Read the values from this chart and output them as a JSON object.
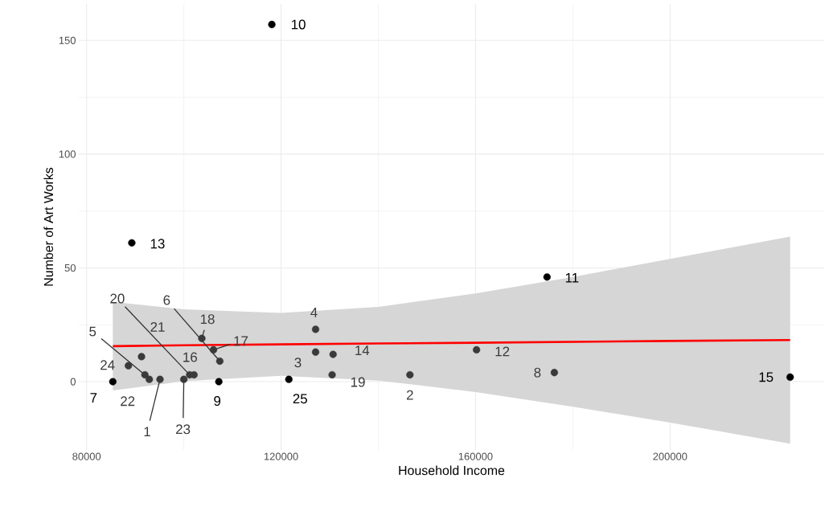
{
  "chart_data": {
    "type": "scatter",
    "xlabel": "Household Income",
    "ylabel": "Number of Art Works",
    "xlim": [
      78400,
      231700
    ],
    "ylim": [
      -30,
      166
    ],
    "xticks": [
      80000,
      120000,
      160000,
      200000
    ],
    "yticks": [
      0,
      50,
      100,
      150
    ],
    "grid": true,
    "series": [
      {
        "marker": "circle",
        "x": [
          95100,
          146500,
          127100,
          127100,
          92000,
          107400,
          85400,
          176200,
          107200,
          118100,
          174700,
          160200,
          89300,
          130700,
          224700,
          102100,
          106100,
          103700,
          130500,
          101200,
          91300,
          92900,
          100000,
          88600,
          121600
        ],
        "values": [
          1,
          3,
          13,
          23,
          3,
          9,
          0,
          4,
          0,
          157,
          46,
          14,
          61,
          12,
          2,
          3,
          14,
          19,
          3,
          3,
          11,
          1,
          1,
          7,
          1
        ],
        "colors": [
          "#3a3a3a",
          "#3a3a3a",
          "#3a3a3a",
          "#3a3a3a",
          "#3a3a3a",
          "#3a3a3a",
          "#000000",
          "#3a3a3a",
          "#000000",
          "#000000",
          "#000000",
          "#3a3a3a",
          "#000000",
          "#3a3a3a",
          "#000000",
          "#3a3a3a",
          "#3a3a3a",
          "#3a3a3a",
          "#3a3a3a",
          "#3a3a3a",
          "#3a3a3a",
          "#3a3a3a",
          "#3a3a3a",
          "#3a3a3a",
          "#000000"
        ]
      },
      {
        "type": "line",
        "marker": "none",
        "color": "#ff0000",
        "x": [
          85400,
          100000,
          120000,
          140000,
          160000,
          180000,
          200000,
          224700
        ],
        "values": [
          15.6,
          16.0,
          16.4,
          16.8,
          17.1,
          17.5,
          17.9,
          18.3
        ],
        "lower": [
          -3.9,
          0.2,
          2.6,
          0.5,
          -4.6,
          -11,
          -18,
          -27.3
        ],
        "upper": [
          35.1,
          31.8,
          30.2,
          32.9,
          38.8,
          46,
          54,
          63.8
        ]
      }
    ],
    "annotations": [
      {
        "text": "1",
        "x": 95100,
        "y": 1
      },
      {
        "text": "2",
        "x": 146500,
        "y": 3
      },
      {
        "text": "3",
        "x": 127100,
        "y": 13
      },
      {
        "text": "4",
        "x": 127100,
        "y": 23
      },
      {
        "text": "5",
        "x": 92000,
        "y": 3
      },
      {
        "text": "6",
        "x": 107400,
        "y": 9
      },
      {
        "text": "7",
        "x": 85400,
        "y": 0
      },
      {
        "text": "8",
        "x": 176200,
        "y": 4
      },
      {
        "text": "9",
        "x": 107200,
        "y": 0
      },
      {
        "text": "10",
        "x": 118100,
        "y": 157
      },
      {
        "text": "11",
        "x": 174700,
        "y": 46
      },
      {
        "text": "12",
        "x": 160200,
        "y": 14
      },
      {
        "text": "13",
        "x": 89300,
        "y": 61
      },
      {
        "text": "14",
        "x": 130700,
        "y": 12
      },
      {
        "text": "15",
        "x": 224700,
        "y": 2
      },
      {
        "text": "16",
        "x": 102100,
        "y": 3
      },
      {
        "text": "17",
        "x": 106100,
        "y": 14
      },
      {
        "text": "18",
        "x": 103700,
        "y": 19
      },
      {
        "text": "19",
        "x": 130500,
        "y": 3
      },
      {
        "text": "20",
        "x": 101200,
        "y": 3
      },
      {
        "text": "21",
        "x": 91300,
        "y": 11
      },
      {
        "text": "22",
        "x": 92900,
        "y": 1
      },
      {
        "text": "23",
        "x": 100000,
        "y": 1
      },
      {
        "text": "24",
        "x": 88600,
        "y": 7
      },
      {
        "text": "25",
        "x": 121600,
        "y": 1
      }
    ]
  }
}
